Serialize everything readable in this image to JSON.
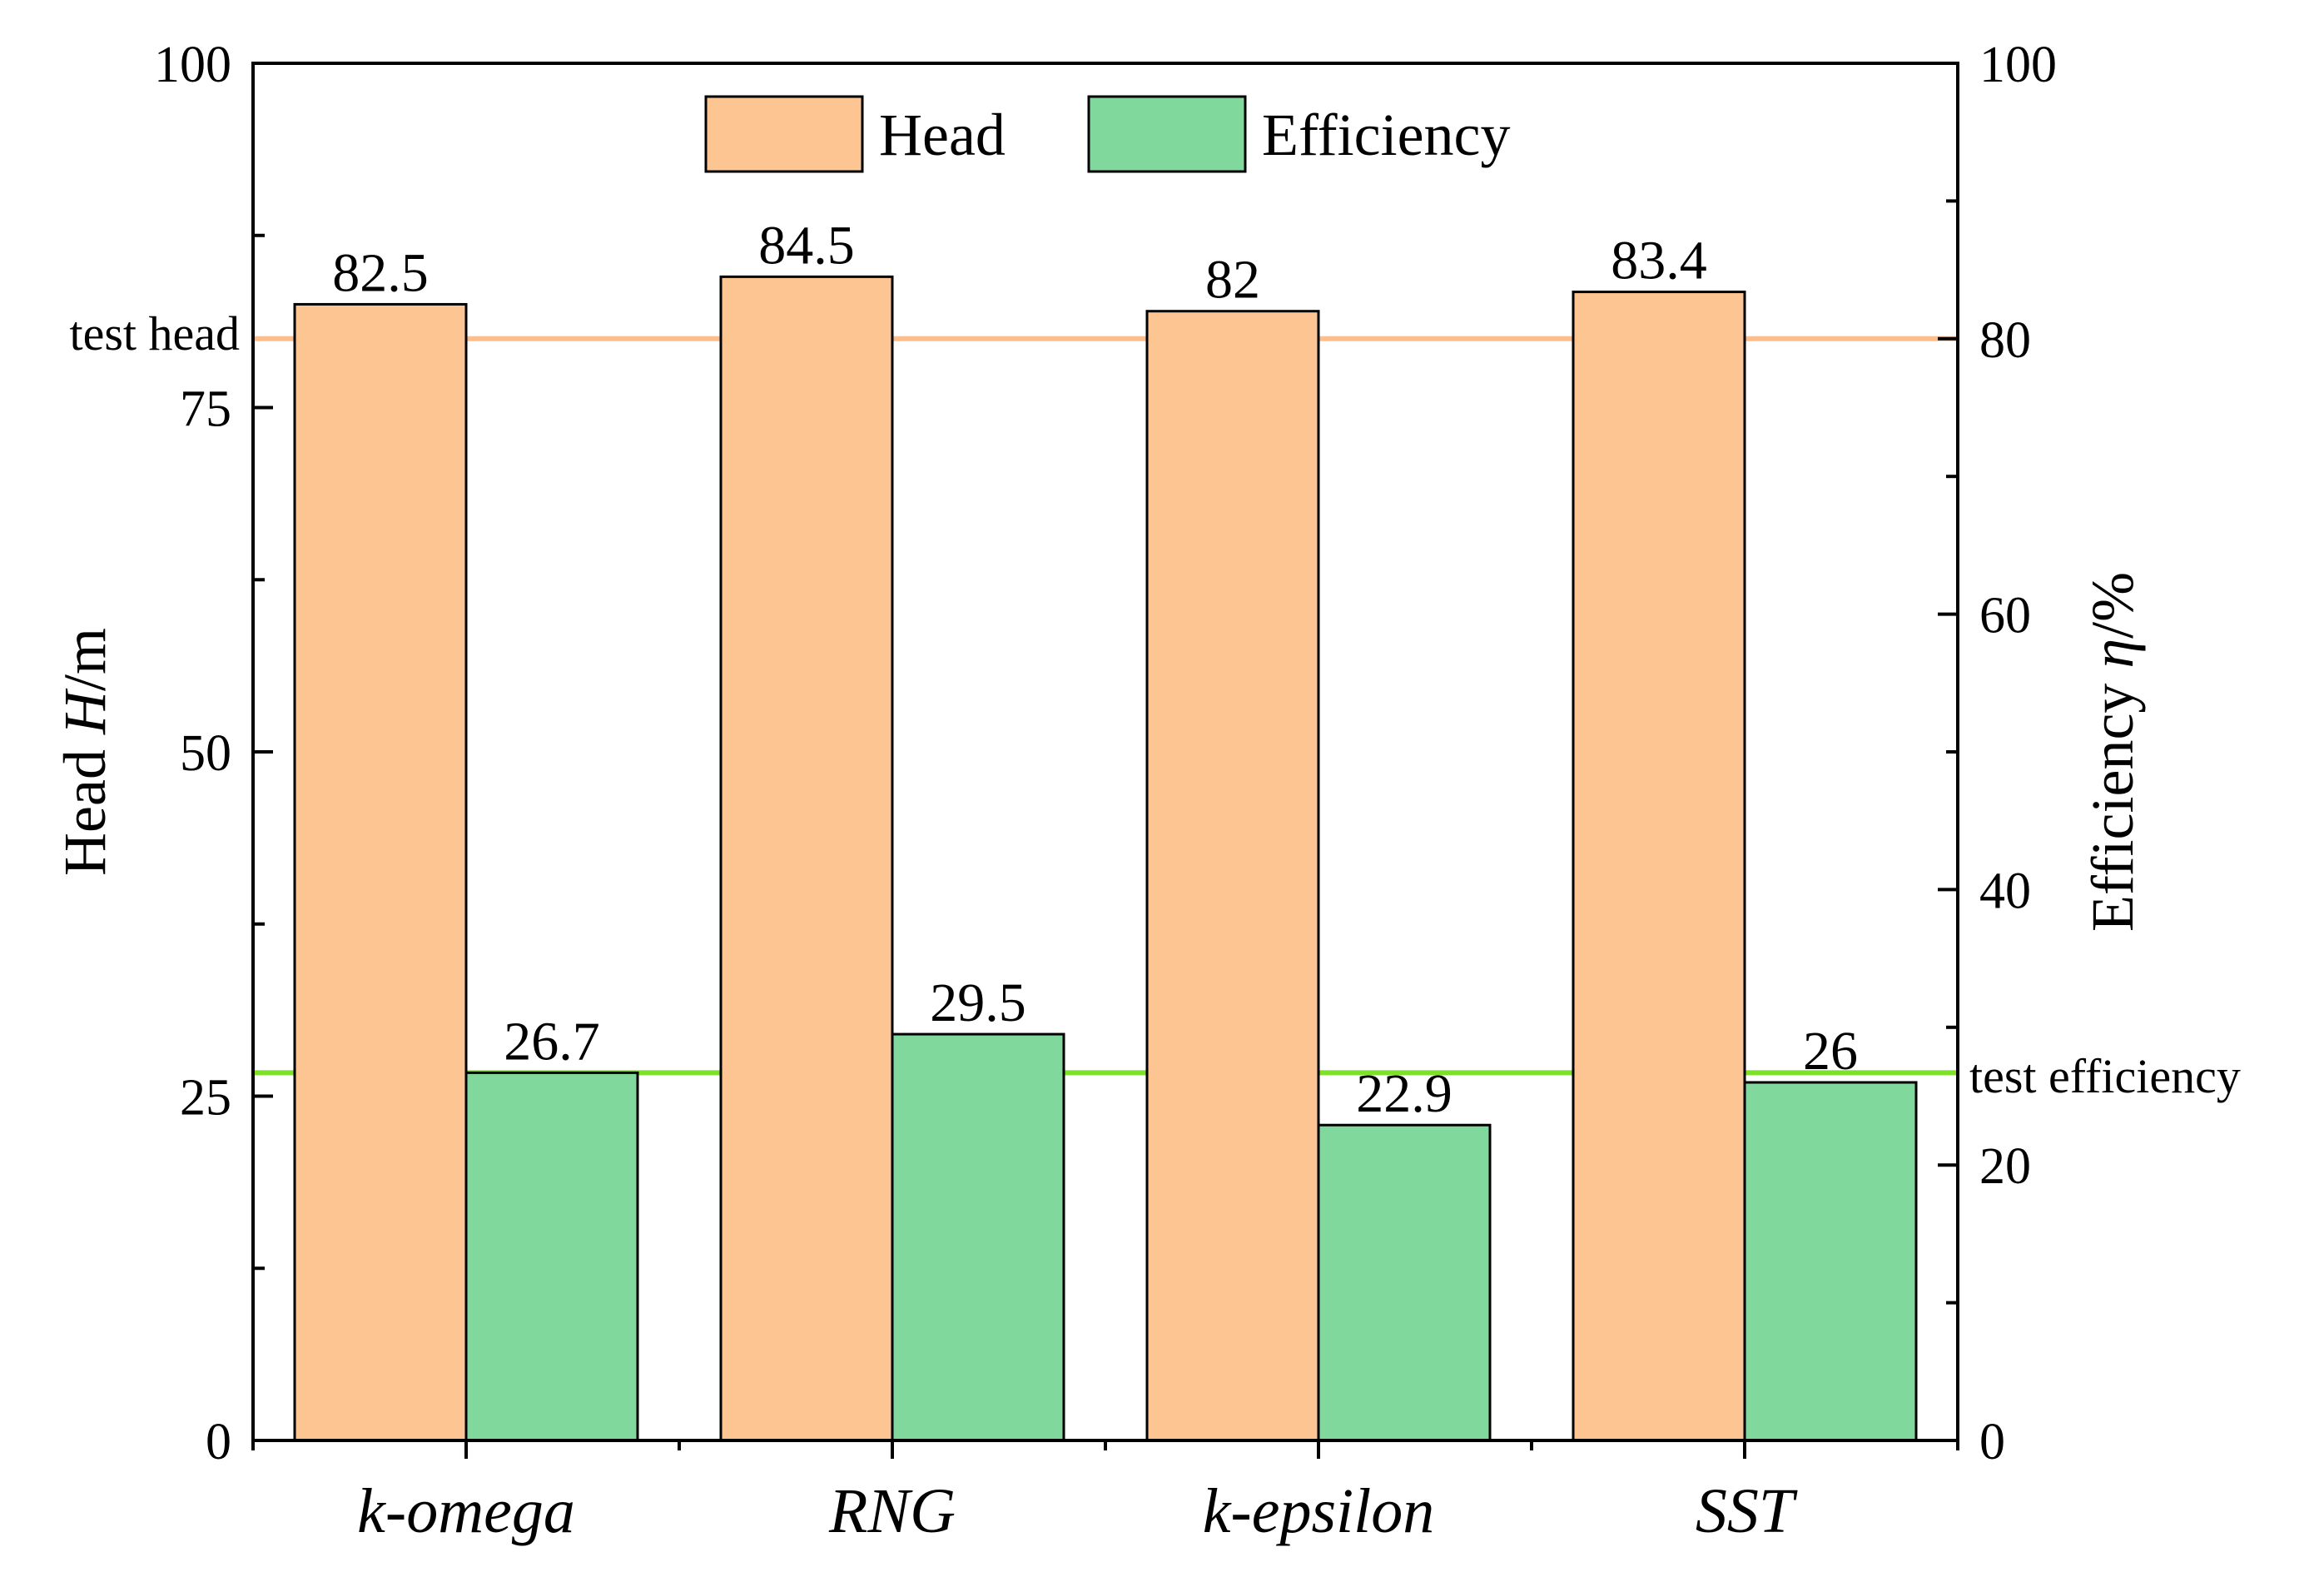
{
  "chart_data": {
    "type": "bar",
    "categories": [
      "k-omega",
      "RNG",
      "k-epsilon",
      "SST"
    ],
    "series": [
      {
        "name": "Head",
        "axis": "left",
        "values": [
          82.5,
          84.5,
          82,
          83.4
        ],
        "color": "#FDC592",
        "labels": [
          "82.5",
          "84.5",
          "82",
          "83.4"
        ]
      },
      {
        "name": "Efficiency",
        "axis": "right",
        "values": [
          26.7,
          29.5,
          22.9,
          26
        ],
        "color": "#80D89C",
        "labels": [
          "26.7",
          "29.5",
          "22.9",
          "26"
        ]
      }
    ],
    "y_left": {
      "label_prefix": "Head ",
      "label_var": "H",
      "label_suffix": "/m",
      "range": [
        0,
        100
      ],
      "ticks": [
        0,
        25,
        50,
        75,
        100
      ],
      "tick_labels": [
        "0",
        "25",
        "50",
        "75",
        "100"
      ]
    },
    "y_right": {
      "label_prefix": "Efficiency  ",
      "label_var": "η",
      "label_suffix": "/%",
      "range": [
        0,
        100
      ],
      "ticks": [
        0,
        20,
        40,
        60,
        80,
        100
      ],
      "tick_labels": [
        "0",
        "20",
        "40",
        "60",
        "80",
        "100"
      ]
    },
    "reference_lines": [
      {
        "name": "test head",
        "label": "test head",
        "axis": "left",
        "value": 80,
        "color": "#FDBE8E"
      },
      {
        "name": "test efficiency",
        "label": "test efficiency",
        "axis": "left",
        "value": 26.7,
        "color": "#7EE02A"
      }
    ],
    "legend": {
      "position": "top-center",
      "entries": [
        "Head",
        "Efficiency"
      ]
    }
  }
}
